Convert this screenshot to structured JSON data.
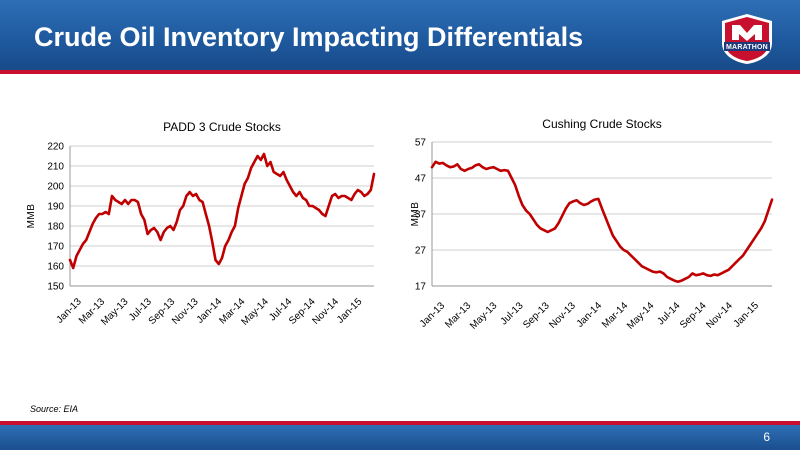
{
  "header": {
    "title": "Crude Oil Inventory Impacting Differentials",
    "logo_text": "MARATHON"
  },
  "footer": {
    "source": "Source:  EIA",
    "page_number": "6"
  },
  "colors": {
    "header_blue": "#1f5a9f",
    "accent_red": "#c8102e",
    "series_red": "#c00000"
  },
  "chart_data": [
    {
      "type": "line",
      "title": "PADD 3 Crude Stocks",
      "ylabel": "MMB",
      "xlabel": "",
      "ylim": [
        150,
        220
      ],
      "yticks": [
        150,
        160,
        170,
        180,
        190,
        200,
        210,
        220
      ],
      "x_tick_labels": [
        "Jan-13",
        "Mar-13",
        "May-13",
        "Jul-13",
        "Sep-13",
        "Nov-13",
        "Jan-14",
        "Mar-14",
        "May-14",
        "Jul-14",
        "Sep-14",
        "Nov-14",
        "Jan-15"
      ],
      "grid": true,
      "series": [
        {
          "values": [
            163,
            159,
            165,
            168,
            171,
            173,
            177,
            181,
            184,
            186,
            186,
            187,
            186,
            195,
            193,
            192,
            191,
            193,
            191,
            193,
            193,
            192,
            186,
            183,
            176,
            178,
            179,
            177,
            173,
            177,
            179,
            180,
            178,
            182,
            188,
            190,
            195,
            197,
            195,
            196,
            193,
            192,
            186,
            180,
            172,
            163,
            161,
            164,
            170,
            173,
            177,
            180,
            189,
            195,
            201,
            204,
            209,
            212,
            215,
            213,
            216,
            210,
            212,
            207,
            206,
            205,
            207,
            203,
            200,
            197,
            195,
            197,
            194,
            193,
            190,
            190,
            189,
            188,
            186,
            185,
            190,
            195,
            196,
            194,
            195,
            195,
            194,
            193,
            196,
            198,
            197,
            195,
            196,
            198,
            206
          ]
        }
      ]
    },
    {
      "type": "line",
      "title": "Cushing Crude Stocks",
      "ylabel": "MMB",
      "xlabel": "",
      "ylim": [
        17,
        57
      ],
      "yticks": [
        17,
        27,
        37,
        47,
        57
      ],
      "x_tick_labels": [
        "Jan-13",
        "Mar-13",
        "May-13",
        "Jul-13",
        "Sep-13",
        "Nov-13",
        "Jan-14",
        "Mar-14",
        "May-14",
        "Jul-14",
        "Sep-14",
        "Nov-14",
        "Jan-15"
      ],
      "grid": true,
      "series": [
        {
          "values": [
            50,
            51.5,
            51,
            51.2,
            50.5,
            50,
            50.2,
            50.8,
            49.5,
            49,
            49.5,
            49.8,
            50.5,
            50.8,
            50,
            49.5,
            49.8,
            50,
            49.5,
            49,
            49.2,
            49,
            47,
            45,
            42,
            39.5,
            38,
            37,
            35.5,
            34,
            33,
            32.5,
            32,
            32.5,
            33,
            34.5,
            36.5,
            38.5,
            40,
            40.5,
            40.8,
            40,
            39.5,
            39.8,
            40.5,
            41,
            41.2,
            38.5,
            36,
            33.5,
            31,
            29.5,
            28,
            27,
            26.5,
            25.5,
            24.5,
            23.5,
            22.5,
            22,
            21.5,
            21,
            20.8,
            21,
            20.5,
            19.5,
            19,
            18.5,
            18.2,
            18.5,
            19,
            19.5,
            20.5,
            20,
            20.2,
            20.5,
            20,
            19.8,
            20.2,
            20,
            20.5,
            21,
            21.5,
            22.5,
            23.5,
            24.5,
            25.5,
            27,
            28.5,
            30,
            31.5,
            33,
            35,
            38,
            41
          ]
        }
      ]
    }
  ]
}
